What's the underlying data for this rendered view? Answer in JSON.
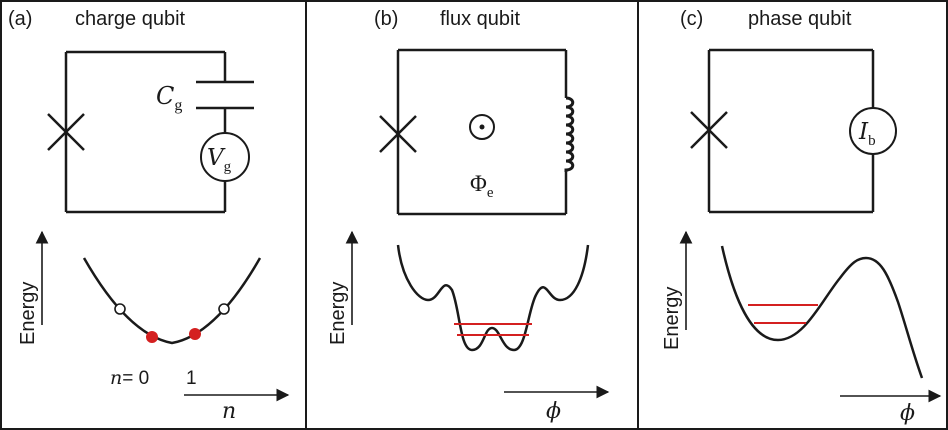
{
  "colors": {
    "line": "#1a1a1a",
    "state_dot": "#d42020",
    "level_line": "#d42020",
    "background": "#ffffff"
  },
  "panels": [
    {
      "label": "(a)",
      "title": "charge qubit",
      "capacitor_symbol": "C",
      "capacitor_sub": "g",
      "source_symbol": "V",
      "source_sub": "g",
      "energy_label": "Energy",
      "n_label": "n",
      "n_zero": "= 0",
      "n_one": "1",
      "x_axis_label": "n"
    },
    {
      "label": "(b)",
      "title": "flux qubit",
      "flux_symbol": "Φ",
      "flux_sub": "e",
      "energy_label": "Energy",
      "x_axis_label": "ϕ"
    },
    {
      "label": "(c)",
      "title": "phase qubit",
      "source_symbol": "I",
      "source_sub": "b",
      "energy_label": "Energy",
      "x_axis_label": "ϕ"
    }
  ]
}
